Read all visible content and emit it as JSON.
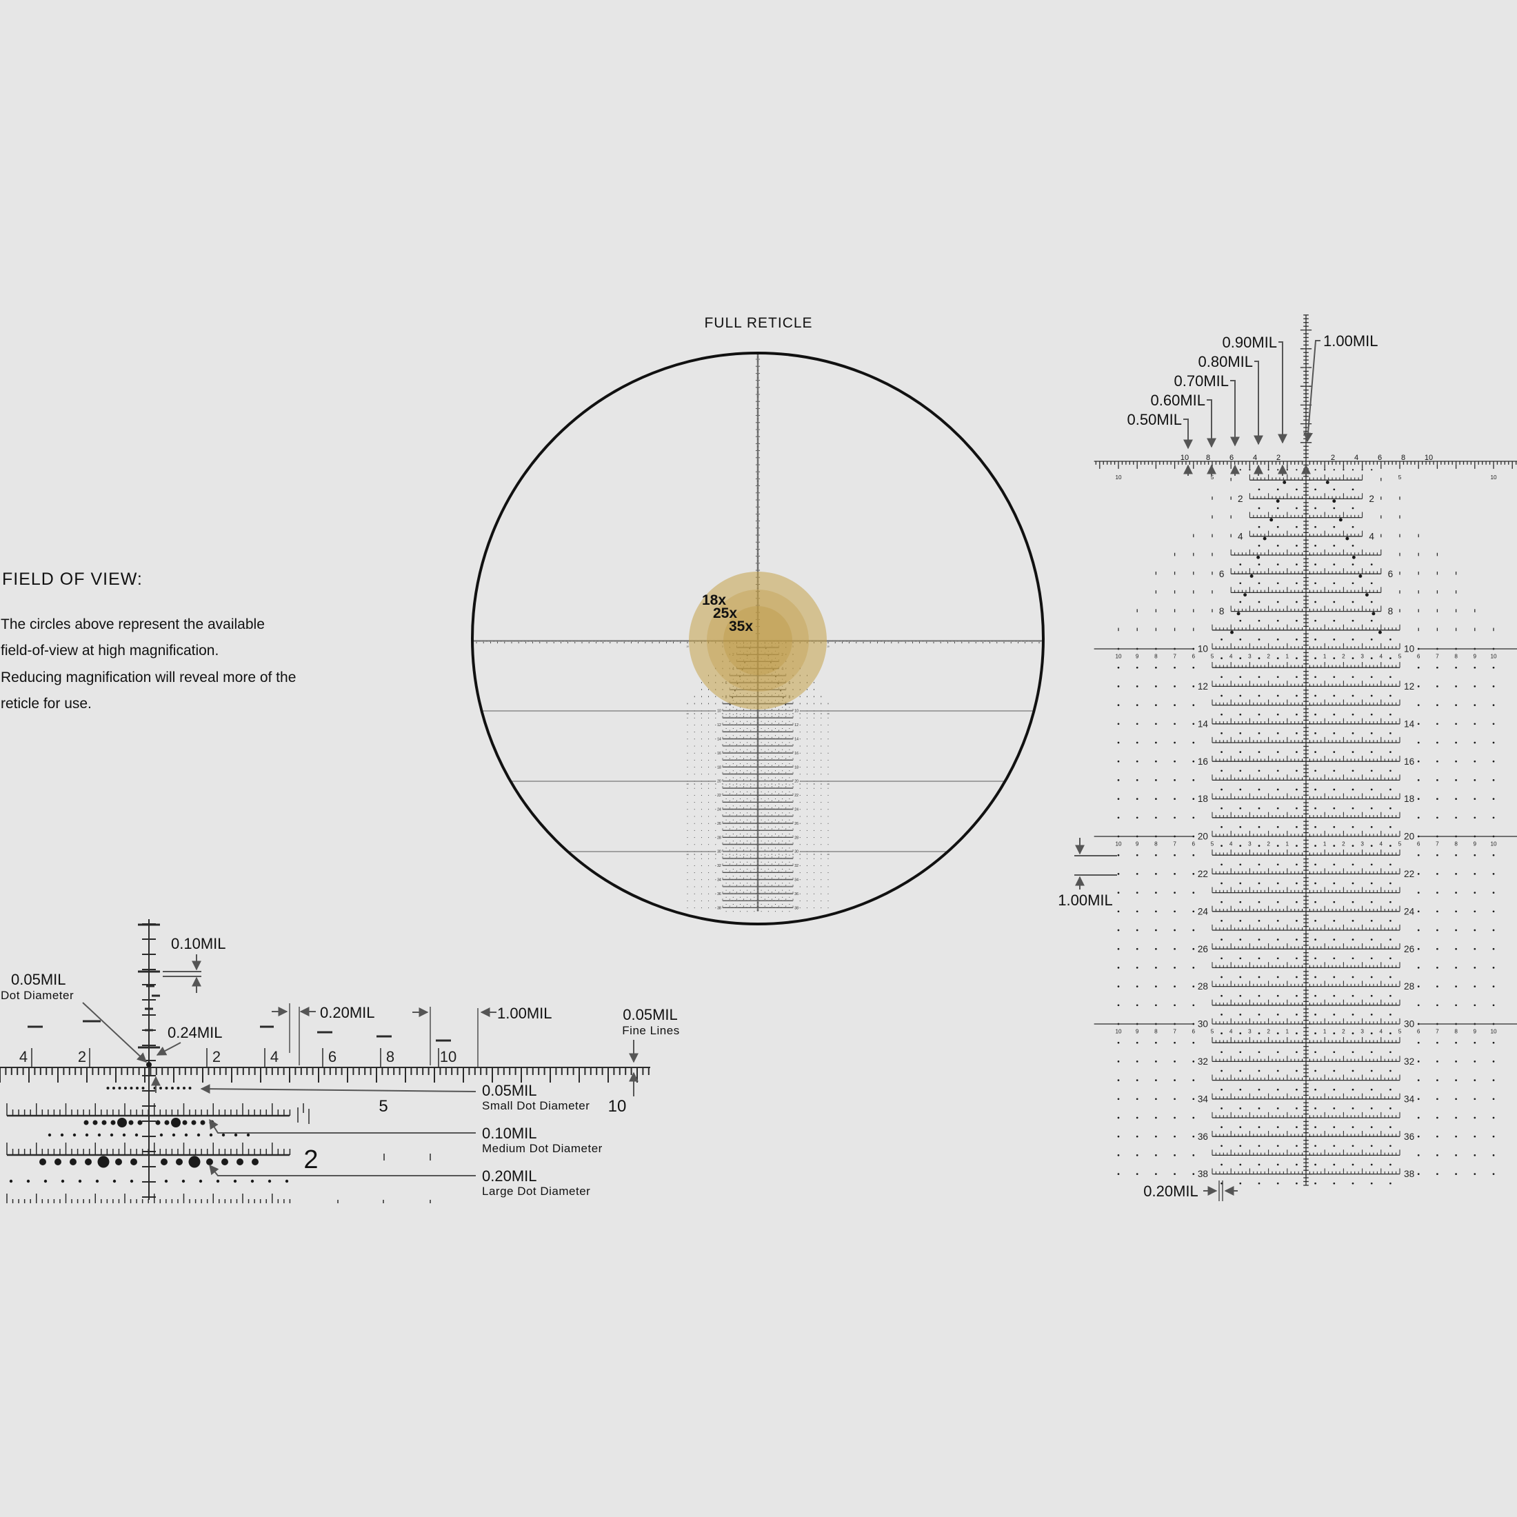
{
  "title": "FULL RETICLE",
  "field_of_view": {
    "heading": "FIELD OF VIEW:",
    "lines": [
      "The circles above represent the available",
      "field-of-view at high magnification.",
      "Reducing magnification will reveal more of the",
      "reticle for use."
    ]
  },
  "magnifications": {
    "labels": [
      "18x",
      "25x",
      "35x"
    ],
    "label_color": "#8b1a1a",
    "circle_color": "#c8a752"
  },
  "detail_left": {
    "vertical_tick_label": "0.10MIL",
    "dot_label": "0.05MIL",
    "dot_sub": "Dot Diameter",
    "offset_label": "0.24MIL",
    "spacing_label": "0.20MIL",
    "major_label": "1.00MIL",
    "fine_label": "0.05MIL",
    "fine_sub": "Fine Lines",
    "small_dot_label": "0.05MIL",
    "small_dot_sub": "Small Dot Diameter",
    "medium_dot_label": "0.10MIL",
    "medium_dot_sub": "Medium Dot Diameter",
    "large_dot_label": "0.20MIL",
    "large_dot_sub": "Large Dot Diameter",
    "ruler_left_labels": [
      "4",
      "2"
    ],
    "ruler_right_labels": [
      "2",
      "4",
      "6",
      "8",
      "10"
    ],
    "row_value_5": "5",
    "row_value_10": "10",
    "row_label_2": "2"
  },
  "detail_right": {
    "step_labels": [
      "0.50MIL",
      "0.60MIL",
      "0.70MIL",
      "0.80MIL",
      "0.90MIL"
    ],
    "top_label": "1.00MIL",
    "row_spacing_label": "1.00MIL",
    "bottom_label": "0.20MIL",
    "top_sub_labels": [
      "10",
      "8",
      "6",
      "4",
      "2",
      "2",
      "4",
      "6",
      "8",
      "10"
    ]
  },
  "reticle": {
    "elevation_labels": [
      "2",
      "4",
      "6",
      "8",
      "10",
      "12",
      "14",
      "16",
      "18",
      "20",
      "22",
      "24",
      "26",
      "28",
      "30",
      "32",
      "34",
      "36",
      "38"
    ],
    "windage_labels": [
      "1",
      "2",
      "3",
      "4",
      "5",
      "6",
      "7",
      "8",
      "9",
      "10"
    ],
    "horizon_labels": [
      "5",
      "10"
    ]
  }
}
